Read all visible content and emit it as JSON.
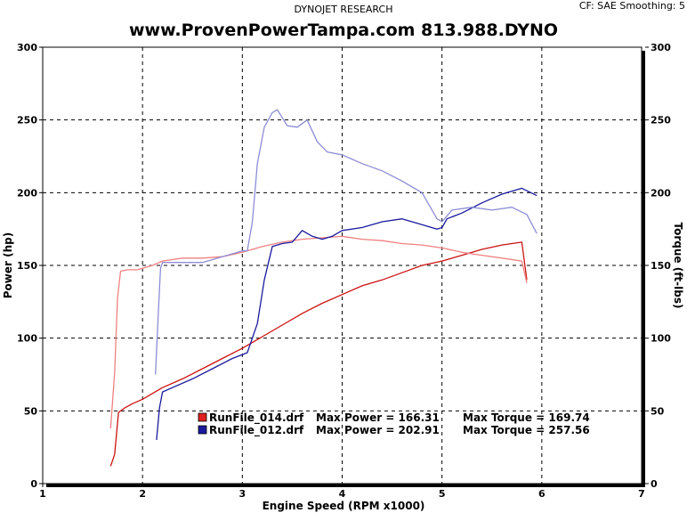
{
  "header": {
    "company": "DYNOJET RESEARCH",
    "settings": "CF: SAE  Smoothing: 5",
    "title": "www.ProvenPowerTampa.com 813.988.DYNO"
  },
  "chart_data": {
    "type": "line",
    "xlabel": "Engine Speed (RPM x1000)",
    "ylabel_left": "Power (hp)",
    "ylabel_right": "Torque (ft-lbs)",
    "xlim": [
      1,
      7
    ],
    "ylim_left": [
      0,
      300
    ],
    "ylim_right": [
      0,
      300
    ],
    "x_ticks": [
      1,
      2,
      3,
      4,
      5,
      6,
      7
    ],
    "y_ticks": [
      0,
      50,
      100,
      150,
      200,
      250,
      300
    ],
    "grid": true,
    "legend": [
      {
        "file": "RunFile_014.drf",
        "max_power_label": "Max Power = 166.31",
        "max_torque_label": "Max Torque = 169.74",
        "color": "#e02020"
      },
      {
        "file": "RunFile_012.drf",
        "max_power_label": "Max Power = 202.91",
        "max_torque_label": "Max Torque = 257.56",
        "color": "#1a1a9e"
      }
    ],
    "series": [
      {
        "file": "RunFile_014.drf",
        "measure": "power",
        "color": "#cc1111",
        "points": [
          [
            1.68,
            12
          ],
          [
            1.72,
            20
          ],
          [
            1.76,
            49
          ],
          [
            1.82,
            52
          ],
          [
            1.9,
            55
          ],
          [
            2.0,
            58
          ],
          [
            2.2,
            66
          ],
          [
            2.4,
            72
          ],
          [
            2.6,
            79
          ],
          [
            2.8,
            86
          ],
          [
            3.0,
            93
          ],
          [
            3.2,
            101
          ],
          [
            3.4,
            109
          ],
          [
            3.6,
            117
          ],
          [
            3.8,
            124
          ],
          [
            4.0,
            130
          ],
          [
            4.2,
            136
          ],
          [
            4.4,
            140
          ],
          [
            4.6,
            145
          ],
          [
            4.8,
            150
          ],
          [
            5.0,
            153
          ],
          [
            5.2,
            157
          ],
          [
            5.4,
            161
          ],
          [
            5.6,
            164
          ],
          [
            5.8,
            166
          ],
          [
            5.85,
            140
          ]
        ]
      },
      {
        "file": "RunFile_014.drf",
        "measure": "torque",
        "color": "#f08080",
        "points": [
          [
            1.68,
            38
          ],
          [
            1.72,
            76
          ],
          [
            1.75,
            128
          ],
          [
            1.78,
            146
          ],
          [
            1.85,
            147
          ],
          [
            1.95,
            147
          ],
          [
            2.1,
            150
          ],
          [
            2.2,
            153
          ],
          [
            2.4,
            155
          ],
          [
            2.6,
            155
          ],
          [
            2.8,
            156
          ],
          [
            3.0,
            159
          ],
          [
            3.2,
            163
          ],
          [
            3.4,
            166
          ],
          [
            3.6,
            168
          ],
          [
            3.8,
            169
          ],
          [
            4.0,
            170
          ],
          [
            4.2,
            168
          ],
          [
            4.4,
            167
          ],
          [
            4.6,
            165
          ],
          [
            4.8,
            164
          ],
          [
            5.0,
            162
          ],
          [
            5.2,
            159
          ],
          [
            5.4,
            157
          ],
          [
            5.6,
            155
          ],
          [
            5.8,
            153
          ],
          [
            5.85,
            138
          ]
        ]
      },
      {
        "file": "RunFile_012.drf",
        "measure": "power",
        "color": "#1a1a9e",
        "points": [
          [
            2.14,
            30
          ],
          [
            2.17,
            52
          ],
          [
            2.2,
            63
          ],
          [
            2.3,
            66
          ],
          [
            2.5,
            72
          ],
          [
            2.7,
            79
          ],
          [
            2.9,
            86
          ],
          [
            3.05,
            90
          ],
          [
            3.15,
            110
          ],
          [
            3.22,
            140
          ],
          [
            3.3,
            163
          ],
          [
            3.4,
            165
          ],
          [
            3.5,
            166
          ],
          [
            3.6,
            174
          ],
          [
            3.7,
            170
          ],
          [
            3.8,
            168
          ],
          [
            3.9,
            170
          ],
          [
            4.0,
            174
          ],
          [
            4.2,
            176
          ],
          [
            4.4,
            180
          ],
          [
            4.6,
            182
          ],
          [
            4.8,
            178
          ],
          [
            4.95,
            175
          ],
          [
            5.0,
            176
          ],
          [
            5.05,
            182
          ],
          [
            5.2,
            186
          ],
          [
            5.4,
            193
          ],
          [
            5.6,
            199
          ],
          [
            5.8,
            203
          ],
          [
            5.95,
            198
          ]
        ]
      },
      {
        "file": "RunFile_012.drf",
        "measure": "torque",
        "color": "#8c8cd6",
        "points": [
          [
            2.13,
            75
          ],
          [
            2.16,
            120
          ],
          [
            2.18,
            148
          ],
          [
            2.2,
            152
          ],
          [
            2.4,
            152
          ],
          [
            2.6,
            152
          ],
          [
            2.8,
            156
          ],
          [
            3.0,
            160
          ],
          [
            3.05,
            160
          ],
          [
            3.1,
            180
          ],
          [
            3.15,
            220
          ],
          [
            3.22,
            245
          ],
          [
            3.3,
            255
          ],
          [
            3.35,
            257
          ],
          [
            3.45,
            246
          ],
          [
            3.55,
            245
          ],
          [
            3.65,
            250
          ],
          [
            3.75,
            235
          ],
          [
            3.85,
            228
          ],
          [
            4.0,
            226
          ],
          [
            4.2,
            220
          ],
          [
            4.4,
            215
          ],
          [
            4.6,
            208
          ],
          [
            4.8,
            200
          ],
          [
            4.95,
            182
          ],
          [
            5.0,
            180
          ],
          [
            5.1,
            188
          ],
          [
            5.3,
            190
          ],
          [
            5.5,
            188
          ],
          [
            5.7,
            190
          ],
          [
            5.85,
            185
          ],
          [
            5.95,
            172
          ]
        ]
      }
    ]
  }
}
